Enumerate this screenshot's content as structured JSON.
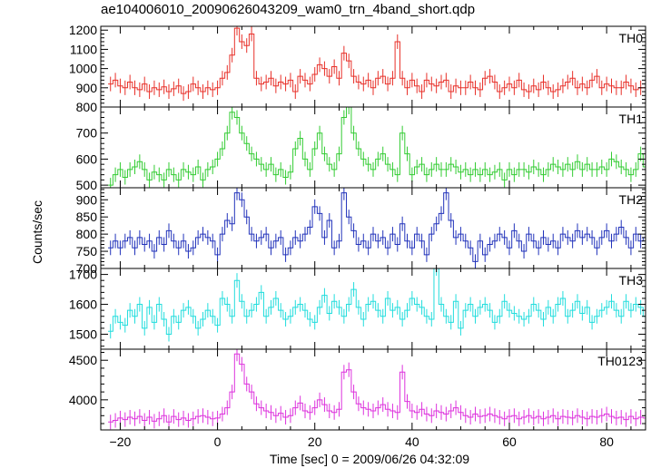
{
  "title": "ae104006010_20090626043209_wam0_trn_4band_short.qdp",
  "chart_data": {
    "type": "line",
    "xlabel": "Time [sec] 0 = 2009/06/26 04:32:09",
    "ylabel": "Counts/sec",
    "xlim": [
      -24,
      88
    ],
    "xticks": [
      -20,
      0,
      20,
      40,
      60,
      80
    ],
    "grid": false,
    "panels": [
      {
        "name": "TH0",
        "color": "#e8312a",
        "ylim": [
          800,
          1220
        ],
        "yticks": [
          800,
          900,
          1000,
          1100,
          1200
        ],
        "x_start": -22,
        "dx": 1,
        "values": [
          920,
          940,
          910,
          900,
          930,
          900,
          890,
          920,
          880,
          900,
          890,
          905,
          880,
          895,
          910,
          870,
          880,
          920,
          900,
          880,
          900,
          890,
          900,
          950,
          980,
          1070,
          1210,
          1140,
          1120,
          1180,
          950,
          920,
          930,
          950,
          910,
          930,
          920,
          940,
          880,
          960,
          940,
          920,
          970,
          1020,
          1000,
          960,
          1010,
          950,
          1080,
          1040,
          960,
          930,
          920,
          940,
          900,
          950,
          960,
          920,
          950,
          1140,
          950,
          900,
          940,
          910,
          880,
          940,
          920,
          910,
          930,
          940,
          880,
          910,
          900,
          900,
          930,
          900,
          890,
          950,
          960,
          930,
          880,
          900,
          920,
          900,
          940,
          890,
          880,
          910,
          890,
          930,
          900,
          880,
          890,
          910,
          930,
          950,
          900,
          920,
          900,
          940,
          960,
          900,
          920,
          910,
          900,
          900,
          930,
          910,
          890,
          900,
          900,
          880,
          890
        ]
      },
      {
        "name": "TH1",
        "color": "#33cc33",
        "ylim": [
          490,
          800
        ],
        "yticks": [
          500,
          600,
          700
        ],
        "x_start": -22,
        "dx": 1,
        "values": [
          500,
          540,
          560,
          530,
          560,
          570,
          590,
          560,
          520,
          550,
          540,
          520,
          560,
          540,
          520,
          560,
          550,
          540,
          570,
          520,
          560,
          570,
          600,
          640,
          700,
          780,
          760,
          700,
          660,
          620,
          600,
          580,
          560,
          580,
          540,
          560,
          530,
          550,
          640,
          680,
          600,
          560,
          640,
          700,
          620,
          580,
          560,
          620,
          760,
          800,
          700,
          640,
          600,
          580,
          560,
          600,
          620,
          580,
          560,
          540,
          700,
          620,
          540,
          570,
          580,
          540,
          560,
          580,
          560,
          560,
          580,
          570,
          550,
          560,
          540,
          560,
          540,
          560,
          540,
          550,
          560,
          520,
          560,
          540,
          560,
          560,
          550,
          570,
          560,
          540,
          560,
          580,
          570,
          560,
          580,
          560,
          590,
          560,
          580,
          560,
          560,
          570,
          560,
          600,
          590,
          570,
          560,
          540,
          560,
          620,
          570,
          540,
          520
        ]
      },
      {
        "name": "TH2",
        "color": "#2233bb",
        "ylim": [
          700,
          935
        ],
        "yticks": [
          700,
          750,
          800,
          850,
          900
        ],
        "x_start": -22,
        "dx": 1,
        "values": [
          760,
          780,
          760,
          780,
          790,
          760,
          790,
          770,
          780,
          750,
          790,
          770,
          810,
          780,
          760,
          780,
          750,
          760,
          790,
          800,
          790,
          780,
          740,
          800,
          840,
          830,
          920,
          900,
          850,
          800,
          780,
          790,
          800,
          760,
          780,
          790,
          740,
          760,
          790,
          780,
          800,
          820,
          880,
          860,
          790,
          840,
          760,
          780,
          920,
          850,
          810,
          770,
          780,
          760,
          800,
          780,
          790,
          760,
          800,
          770,
          830,
          780,
          760,
          800,
          780,
          740,
          800,
          830,
          860,
          920,
          840,
          790,
          800,
          780,
          760,
          720,
          780,
          740,
          770,
          780,
          800,
          790,
          760,
          810,
          780,
          750,
          800,
          780,
          760,
          790,
          770,
          780,
          760,
          800,
          790,
          780,
          810,
          790,
          800,
          790,
          760,
          790,
          810,
          780,
          800,
          820,
          790,
          760,
          800,
          780,
          790,
          800,
          770
        ]
      },
      {
        "name": "TH3",
        "color": "#22dddd",
        "ylim": [
          1450,
          1720
        ],
        "yticks": [
          1500,
          1600,
          1700
        ],
        "x_start": -22,
        "dx": 1,
        "values": [
          1510,
          1560,
          1540,
          1530,
          1580,
          1560,
          1600,
          1520,
          1590,
          1540,
          1600,
          1550,
          1500,
          1560,
          1540,
          1580,
          1590,
          1560,
          1520,
          1550,
          1580,
          1560,
          1530,
          1620,
          1600,
          1560,
          1680,
          1610,
          1560,
          1580,
          1600,
          1640,
          1560,
          1590,
          1620,
          1580,
          1550,
          1560,
          1590,
          1600,
          1580,
          1550,
          1540,
          1590,
          1630,
          1570,
          1610,
          1590,
          1560,
          1600,
          1650,
          1590,
          1550,
          1600,
          1610,
          1580,
          1560,
          1620,
          1580,
          1590,
          1550,
          1580,
          1620,
          1600,
          1590,
          1560,
          1550,
          1720,
          1600,
          1560,
          1540,
          1610,
          1520,
          1580,
          1600,
          1560,
          1590,
          1600,
          1580,
          1540,
          1560,
          1610,
          1580,
          1570,
          1560,
          1550,
          1560,
          1600,
          1580,
          1550,
          1590,
          1560,
          1600,
          1620,
          1560,
          1580,
          1610,
          1570,
          1590,
          1540,
          1560,
          1580,
          1590,
          1610,
          1580,
          1560,
          1610,
          1580,
          1600,
          1590,
          1560,
          1640,
          1580
        ]
      },
      {
        "name": "TH0123",
        "color": "#dd33dd",
        "ylim": [
          3620,
          4640
        ],
        "yticks": [
          4000,
          4500
        ],
        "x_start": -22,
        "dx": 1,
        "values": [
          3720,
          3740,
          3770,
          3750,
          3780,
          3760,
          3790,
          3740,
          3780,
          3730,
          3760,
          3800,
          3720,
          3790,
          3750,
          3770,
          3740,
          3760,
          3790,
          3800,
          3780,
          3760,
          3770,
          3820,
          3900,
          4100,
          4580,
          4450,
          4200,
          4100,
          3950,
          3900,
          3860,
          3840,
          3800,
          3830,
          3780,
          3800,
          3900,
          3960,
          3860,
          3840,
          3900,
          4000,
          3940,
          3860,
          3840,
          3880,
          4350,
          4380,
          4100,
          3950,
          3900,
          3880,
          3860,
          3900,
          3940,
          3880,
          3860,
          3840,
          4350,
          3980,
          3860,
          3840,
          3880,
          3820,
          3800,
          3860,
          3840,
          3820,
          3860,
          3900,
          3840,
          3800,
          3780,
          3820,
          3790,
          3800,
          3820,
          3800,
          3780,
          3760,
          3790,
          3800,
          3760,
          3780,
          3800,
          3770,
          3790,
          3760,
          3780,
          3800,
          3760,
          3790,
          3780,
          3770,
          3800,
          3780,
          3760,
          3790,
          3780,
          3800,
          3820,
          3790,
          3770,
          3780,
          3750,
          3790,
          3760,
          3780,
          3770,
          3750,
          3760
        ]
      }
    ]
  }
}
